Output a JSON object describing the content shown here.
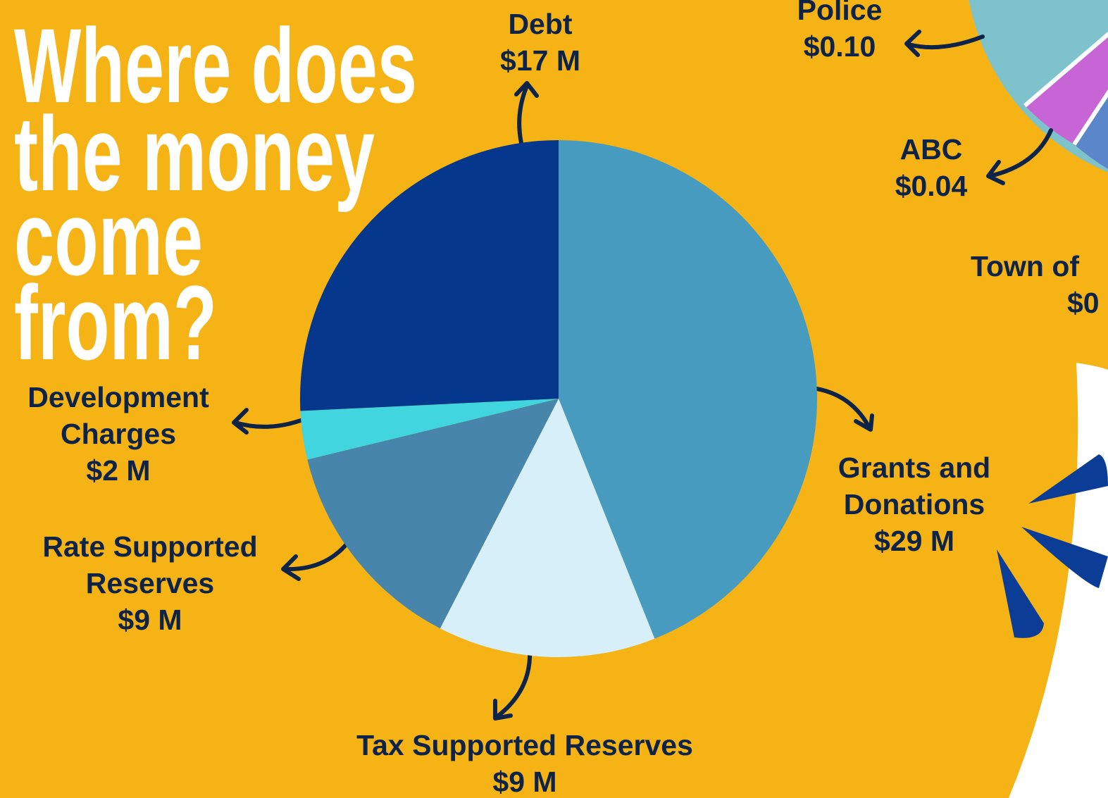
{
  "chart_data": {
    "type": "pie",
    "title_lines": [
      "Where does",
      "the money",
      "come",
      "from?"
    ],
    "categories": [
      "Grants and Donations",
      "Tax Supported Reserves",
      "Rate Supported Reserves",
      "Development Charges",
      "Debt"
    ],
    "values": [
      29,
      9,
      9,
      2,
      17
    ],
    "value_labels": [
      "$29 M",
      "$9 M",
      "$9 M",
      "$2 M",
      "$17 M"
    ],
    "colors": [
      "#479bbf",
      "#d6eff9",
      "#4785ab",
      "#41d6df",
      "#05378d"
    ]
  },
  "cropped_labels": [
    {
      "label": "Police",
      "value": "$0.10"
    },
    {
      "label": "ABC",
      "value": "$0.04"
    },
    {
      "label": "Town of",
      "value": "$0"
    }
  ]
}
